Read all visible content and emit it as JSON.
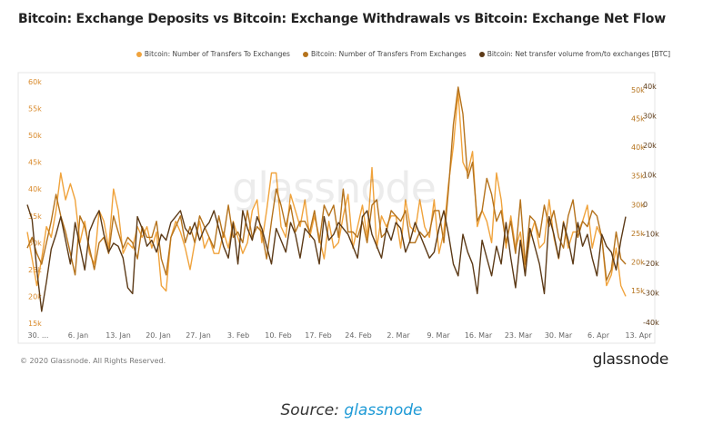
{
  "title": "Bitcoin: Exchange Deposits vs Bitcoin: Exchange Withdrawals vs Bitcoin: Exchange Net Flow",
  "copyright": "© 2020 Glassnode. All Rights Reserved.",
  "logo": "glassnode",
  "watermark": "glassnode",
  "source": {
    "prefix": "Source: ",
    "link": "glassnode"
  },
  "colors": {
    "deposits": "#f0a33c",
    "withdrawals": "#b5731d",
    "netflow": "#5c3a17"
  },
  "chart_data": {
    "type": "line",
    "x_tick_labels": [
      "30. ...",
      "6. Jan",
      "13. Jan",
      "20. Jan",
      "27. Jan",
      "3. Feb",
      "10. Feb",
      "17. Feb",
      "24. Feb",
      "2. Mar",
      "9. Mar",
      "16. Mar",
      "23. Mar",
      "30. Mar",
      "6. Apr",
      "13. Apr"
    ],
    "left_axis": {
      "ticks": [
        "60k",
        "55k",
        "50k",
        "45k",
        "40k",
        "35k",
        "30k",
        "25k",
        "20k",
        "15k"
      ],
      "ylim": [
        15000,
        60000
      ]
    },
    "right_axis_inner": {
      "ticks": [
        "50k",
        "45k",
        "40k",
        "35k",
        "30k",
        "25k",
        "20k",
        "15k"
      ]
    },
    "right_axis_outer": {
      "ticks": [
        "40k",
        "30k",
        "20k",
        "10k",
        "0",
        "-10k",
        "-20k",
        "-30k",
        "-40k"
      ],
      "ylim": [
        -40000,
        40000
      ]
    },
    "series": [
      {
        "name": "Bitcoin: Number of Transfers To Exchanges",
        "axis": "left",
        "values": [
          32000,
          27000,
          22000,
          27000,
          33000,
          31000,
          36000,
          43000,
          38000,
          41000,
          38000,
          30000,
          34000,
          28000,
          26000,
          36000,
          34000,
          29000,
          40000,
          36000,
          28000,
          30000,
          29000,
          33000,
          31000,
          33000,
          29000,
          32000,
          22000,
          21000,
          31000,
          34000,
          32000,
          29000,
          25000,
          30000,
          34000,
          29000,
          31000,
          28000,
          28000,
          32000,
          29000,
          34000,
          31000,
          28000,
          30000,
          36000,
          38000,
          30000,
          36000,
          43000,
          43000,
          33000,
          31000,
          39000,
          36000,
          33000,
          38000,
          31000,
          35000,
          31000,
          27000,
          34000,
          29000,
          30000,
          35000,
          39000,
          29000,
          33000,
          37000,
          31000,
          44000,
          29000,
          35000,
          33000,
          35000,
          35000,
          29000,
          38000,
          33000,
          32000,
          38000,
          33000,
          31000,
          38000,
          28000,
          32000,
          41000,
          48000,
          58000,
          45000,
          43000,
          47000,
          33000,
          36000,
          34000,
          30000,
          43000,
          38000,
          29000,
          35000,
          29000,
          32000,
          25000,
          31000,
          34000,
          29000,
          30000,
          38000,
          31000,
          27000,
          34000,
          29000,
          32000,
          32000,
          34000,
          37000,
          29000,
          33000,
          31000,
          22000,
          24000,
          29000,
          22000,
          20000
        ]
      },
      {
        "name": "Bitcoin: Number of Transfers From Exchanges",
        "axis": "left",
        "values": [
          29000,
          31000,
          28000,
          26000,
          30000,
          34000,
          39000,
          35000,
          32000,
          28000,
          24000,
          35000,
          33000,
          29000,
          25000,
          30000,
          31000,
          28000,
          35000,
          32000,
          29000,
          31000,
          30000,
          27000,
          33000,
          31000,
          31000,
          34000,
          27000,
          24000,
          31000,
          33000,
          35000,
          30000,
          33000,
          30000,
          35000,
          33000,
          31000,
          29000,
          35000,
          31000,
          37000,
          31000,
          32000,
          30000,
          36000,
          31000,
          33000,
          32000,
          27000,
          34000,
          40000,
          37000,
          33000,
          37000,
          32000,
          34000,
          34000,
          32000,
          36000,
          30000,
          37000,
          35000,
          37000,
          31000,
          40000,
          32000,
          32000,
          31000,
          34000,
          30000,
          37000,
          38000,
          31000,
          32000,
          36000,
          35000,
          34000,
          36000,
          30000,
          30000,
          32000,
          31000,
          32000,
          36000,
          36000,
          30000,
          40000,
          52000,
          59000,
          54000,
          42000,
          45000,
          34000,
          36000,
          42000,
          39000,
          34000,
          36000,
          30000,
          34000,
          28000,
          38000,
          26000,
          35000,
          34000,
          31000,
          37000,
          33000,
          36000,
          31000,
          29000,
          35000,
          38000,
          31000,
          34000,
          33000,
          36000,
          35000,
          31000,
          23000,
          25000,
          32000,
          27000,
          26000
        ]
      },
      {
        "name": "Bitcoin: Net transfer volume from/to exchanges [BTC]",
        "axis": "right",
        "values": [
          0,
          -5000,
          -22000,
          -36000,
          -26000,
          -15000,
          -10000,
          -4000,
          -12000,
          -20000,
          -6000,
          -14000,
          -22000,
          -9000,
          -5000,
          -2000,
          -10000,
          -16000,
          -13000,
          -14000,
          -18000,
          -28000,
          -30000,
          -4000,
          -8000,
          -14000,
          -12000,
          -16000,
          -10000,
          -12000,
          -6000,
          -4000,
          -2000,
          -8000,
          -10000,
          -6000,
          -12000,
          -8000,
          -6000,
          -2000,
          -8000,
          -14000,
          -18000,
          -6000,
          -20000,
          -2000,
          -8000,
          -12000,
          -4000,
          -8000,
          -14000,
          -20000,
          -8000,
          -12000,
          -16000,
          -6000,
          -10000,
          -18000,
          -8000,
          -10000,
          -12000,
          -20000,
          -4000,
          -12000,
          -10000,
          -6000,
          -8000,
          -10000,
          -14000,
          -18000,
          -4000,
          -2000,
          -10000,
          -14000,
          -18000,
          -8000,
          -12000,
          -6000,
          -8000,
          -16000,
          -12000,
          -6000,
          -10000,
          -14000,
          -18000,
          -16000,
          -8000,
          -2000,
          -10000,
          -20000,
          -24000,
          -10000,
          -16000,
          -20000,
          -30000,
          -12000,
          -18000,
          -24000,
          -14000,
          -20000,
          -6000,
          -18000,
          -28000,
          -12000,
          -24000,
          -8000,
          -14000,
          -20000,
          -30000,
          -4000,
          -10000,
          -18000,
          -6000,
          -12000,
          -20000,
          -6000,
          -14000,
          -10000,
          -18000,
          -24000,
          -10000,
          -14000,
          -16000,
          -22000,
          -12000,
          -4000
        ]
      }
    ]
  }
}
